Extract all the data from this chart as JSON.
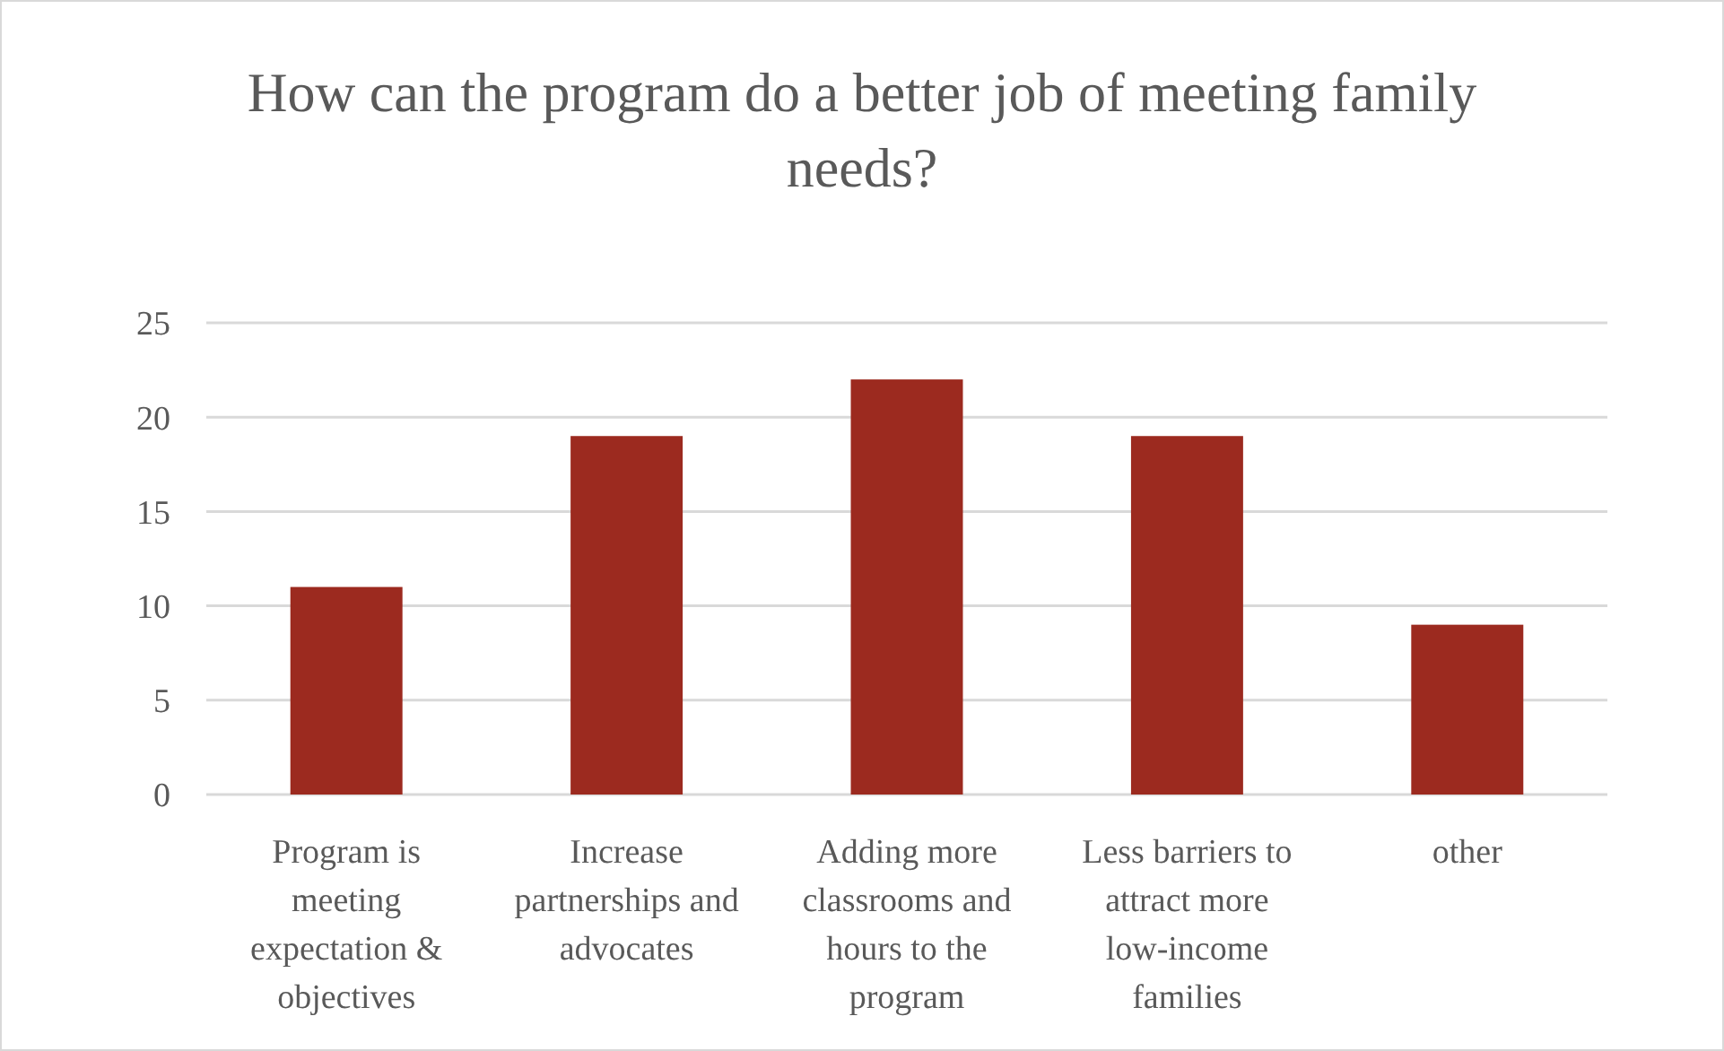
{
  "chart_data": {
    "type": "bar",
    "title": "How can the program do a better job of meeting family needs?",
    "categories": [
      "Program is meeting expectation & objectives",
      "Increase partnerships and advocates",
      "Adding more classrooms and hours to the program",
      "Less barriers to attract more low-income families",
      "other"
    ],
    "values": [
      11,
      19,
      22,
      19,
      9
    ],
    "color": "#9c2a1f",
    "ylim": [
      0,
      25
    ],
    "yticks": [
      0,
      5,
      10,
      15,
      20,
      25
    ],
    "grid": "y"
  }
}
